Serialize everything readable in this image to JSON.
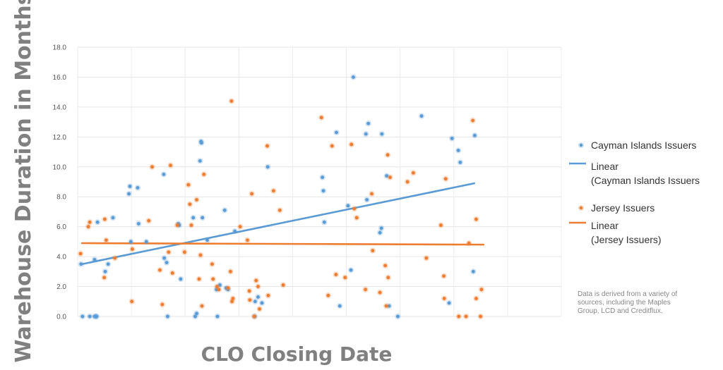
{
  "chart_data": {
    "type": "scatter",
    "ylabel": "Warehouse Duration in Months",
    "xlabel": "CLO Closing Date",
    "x_ticks_shown": false,
    "ylim": [
      0,
      18
    ],
    "y_ticks": [
      "0.0",
      "2.0",
      "4.0",
      "6.0",
      "8.0",
      "10.0",
      "12.0",
      "14.0",
      "16.0",
      "18.0"
    ],
    "y_tick_values": [
      0,
      2,
      4,
      6,
      8,
      10,
      12,
      14,
      16,
      18
    ],
    "x_domain": [
      0,
      100
    ],
    "grid": true,
    "legend_position": "right",
    "series": [
      {
        "name": "Cayman Islands Issuers",
        "kind": "points",
        "color": "#5b9bd5",
        "points": [
          [
            1.0,
            0
          ],
          [
            2.5,
            0
          ],
          [
            3.5,
            0
          ],
          [
            3.8,
            0
          ],
          [
            3.9,
            0
          ],
          [
            0.7,
            3.5
          ],
          [
            3.5,
            3.8
          ],
          [
            4.1,
            6.3
          ],
          [
            5.7,
            3.0
          ],
          [
            6.3,
            3.5
          ],
          [
            7.3,
            6.6
          ],
          [
            10.6,
            8.2
          ],
          [
            10.8,
            8.7
          ],
          [
            11.0,
            5.0
          ],
          [
            12.4,
            8.6
          ],
          [
            12.6,
            6.2
          ],
          [
            14.2,
            5.0
          ],
          [
            17.8,
            9.5
          ],
          [
            17.9,
            3.9
          ],
          [
            18.4,
            3.6
          ],
          [
            18.6,
            0
          ],
          [
            20.8,
            6.2
          ],
          [
            21.0,
            6.1
          ],
          [
            21.3,
            2.5
          ],
          [
            23.9,
            6.6
          ],
          [
            24.3,
            0
          ],
          [
            24.6,
            0.2
          ],
          [
            25.3,
            10.4
          ],
          [
            25.5,
            11.7
          ],
          [
            25.6,
            11.6
          ],
          [
            25.8,
            6.6
          ],
          [
            26.8,
            5.1
          ],
          [
            28.7,
            1.8
          ],
          [
            28.9,
            0
          ],
          [
            29.4,
            2.1
          ],
          [
            30.4,
            7.1
          ],
          [
            30.7,
            1.9
          ],
          [
            31.1,
            1.8
          ],
          [
            32.5,
            5.7
          ],
          [
            36.6,
            0
          ],
          [
            36.7,
            1.0
          ],
          [
            37.3,
            1.3
          ],
          [
            38.1,
            0.9
          ],
          [
            39.3,
            10.0
          ],
          [
            50.6,
            9.3
          ],
          [
            50.8,
            8.4
          ],
          [
            51.0,
            6.3
          ],
          [
            53.5,
            12.3
          ],
          [
            54.2,
            0.7
          ],
          [
            55.9,
            7.4
          ],
          [
            56.5,
            3.1
          ],
          [
            57.0,
            16.0
          ],
          [
            59.6,
            12.2
          ],
          [
            59.8,
            7.8
          ],
          [
            60.1,
            12.9
          ],
          [
            62.5,
            5.6
          ],
          [
            62.8,
            5.9
          ],
          [
            62.9,
            12.2
          ],
          [
            63.9,
            9.4
          ],
          [
            64.4,
            0.7
          ],
          [
            66.2,
            0
          ],
          [
            71.1,
            13.4
          ],
          [
            76.8,
            0.9
          ],
          [
            77.4,
            11.9
          ],
          [
            78.7,
            11.1
          ],
          [
            79.1,
            10.3
          ],
          [
            81.8,
            3.0
          ],
          [
            82.1,
            12.1
          ]
        ]
      },
      {
        "name": "Linear\n(Cayman Islands Issuers",
        "kind": "line",
        "color": "#5b9bd5",
        "line": [
          [
            0.9,
            3.5
          ],
          [
            82.0,
            8.9
          ]
        ]
      },
      {
        "name": "Jersey Issuers",
        "kind": "points",
        "color": "#ed7d31",
        "points": [
          [
            0.6,
            4.2
          ],
          [
            2.2,
            6.0
          ],
          [
            2.5,
            6.3
          ],
          [
            5.5,
            2.6
          ],
          [
            5.6,
            6.5
          ],
          [
            5.9,
            5.1
          ],
          [
            7.7,
            3.9
          ],
          [
            11.2,
            1.0
          ],
          [
            11.3,
            4.5
          ],
          [
            14.7,
            6.4
          ],
          [
            15.4,
            10.0
          ],
          [
            17.0,
            3.1
          ],
          [
            17.5,
            0.8
          ],
          [
            18.8,
            4.3
          ],
          [
            19.2,
            10.1
          ],
          [
            19.6,
            2.9
          ],
          [
            20.6,
            6.1
          ],
          [
            22.1,
            4.3
          ],
          [
            22.9,
            8.8
          ],
          [
            23.2,
            7.5
          ],
          [
            23.5,
            6.1
          ],
          [
            24.6,
            7.8
          ],
          [
            25.1,
            2.5
          ],
          [
            25.4,
            4.1
          ],
          [
            25.7,
            0.7
          ],
          [
            26.1,
            9.5
          ],
          [
            27.8,
            3.5
          ],
          [
            28.0,
            2.5
          ],
          [
            28.8,
            2.0
          ],
          [
            29.2,
            1.8
          ],
          [
            31.1,
            1.9
          ],
          [
            31.6,
            3.0
          ],
          [
            31.8,
            14.4
          ],
          [
            31.9,
            1.0
          ],
          [
            32.1,
            1.2
          ],
          [
            33.6,
            6.0
          ],
          [
            35.1,
            5.1
          ],
          [
            35.5,
            1.7
          ],
          [
            35.6,
            1.1
          ],
          [
            36.0,
            8.2
          ],
          [
            36.5,
            0
          ],
          [
            36.9,
            2.4
          ],
          [
            37.3,
            2.0
          ],
          [
            37.6,
            0.5
          ],
          [
            39.2,
            11.4
          ],
          [
            39.4,
            1.4
          ],
          [
            40.5,
            8.4
          ],
          [
            41.8,
            7.1
          ],
          [
            42.5,
            2.1
          ],
          [
            50.4,
            13.3
          ],
          [
            51.8,
            1.4
          ],
          [
            52.6,
            11.4
          ],
          [
            53.4,
            2.8
          ],
          [
            55.3,
            2.6
          ],
          [
            56.6,
            11.5
          ],
          [
            57.2,
            7.2
          ],
          [
            57.7,
            6.6
          ],
          [
            59.5,
            1.8
          ],
          [
            60.8,
            8.2
          ],
          [
            61.0,
            4.4
          ],
          [
            62.5,
            1.6
          ],
          [
            63.6,
            3.4
          ],
          [
            63.8,
            0.7
          ],
          [
            64.1,
            10.8
          ],
          [
            64.2,
            2.6
          ],
          [
            64.6,
            9.3
          ],
          [
            68.2,
            9.0
          ],
          [
            69.4,
            9.6
          ],
          [
            72.1,
            3.9
          ],
          [
            75.1,
            6.1
          ],
          [
            75.7,
            2.7
          ],
          [
            75.8,
            1.2
          ],
          [
            76.1,
            9.2
          ],
          [
            78.8,
            0
          ],
          [
            80.3,
            0
          ],
          [
            80.9,
            4.9
          ],
          [
            81.7,
            13.1
          ],
          [
            82.4,
            6.5
          ],
          [
            82.4,
            1.2
          ],
          [
            83.5,
            1.8
          ],
          [
            83.3,
            0
          ]
        ]
      },
      {
        "name": "Linear\n(Jersey Issuers)",
        "kind": "line",
        "color": "#ed7d31",
        "line": [
          [
            0.9,
            4.9
          ],
          [
            83.9,
            4.8
          ]
        ]
      }
    ],
    "note": "Data is derived from a variety of sources, including the Maples Group, LCD and Creditflux."
  }
}
